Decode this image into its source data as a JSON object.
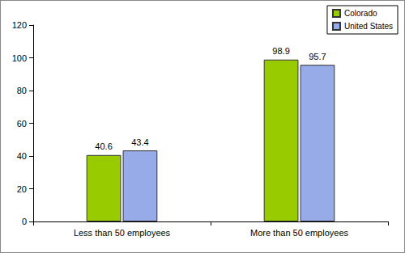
{
  "chart_data": {
    "type": "bar",
    "categories": [
      "Less than 50 employees",
      "More than 50 employees"
    ],
    "series": [
      {
        "name": "Colorado",
        "color": "#99cc00",
        "values": [
          40.6,
          98.9
        ]
      },
      {
        "name": "United States",
        "color": "#97abe8",
        "values": [
          43.4,
          95.7
        ]
      }
    ],
    "ylim": [
      0,
      120
    ],
    "yticks": [
      0,
      20,
      40,
      60,
      80,
      100,
      120
    ],
    "grid": false,
    "legend": "top-right",
    "data_labels": true
  }
}
